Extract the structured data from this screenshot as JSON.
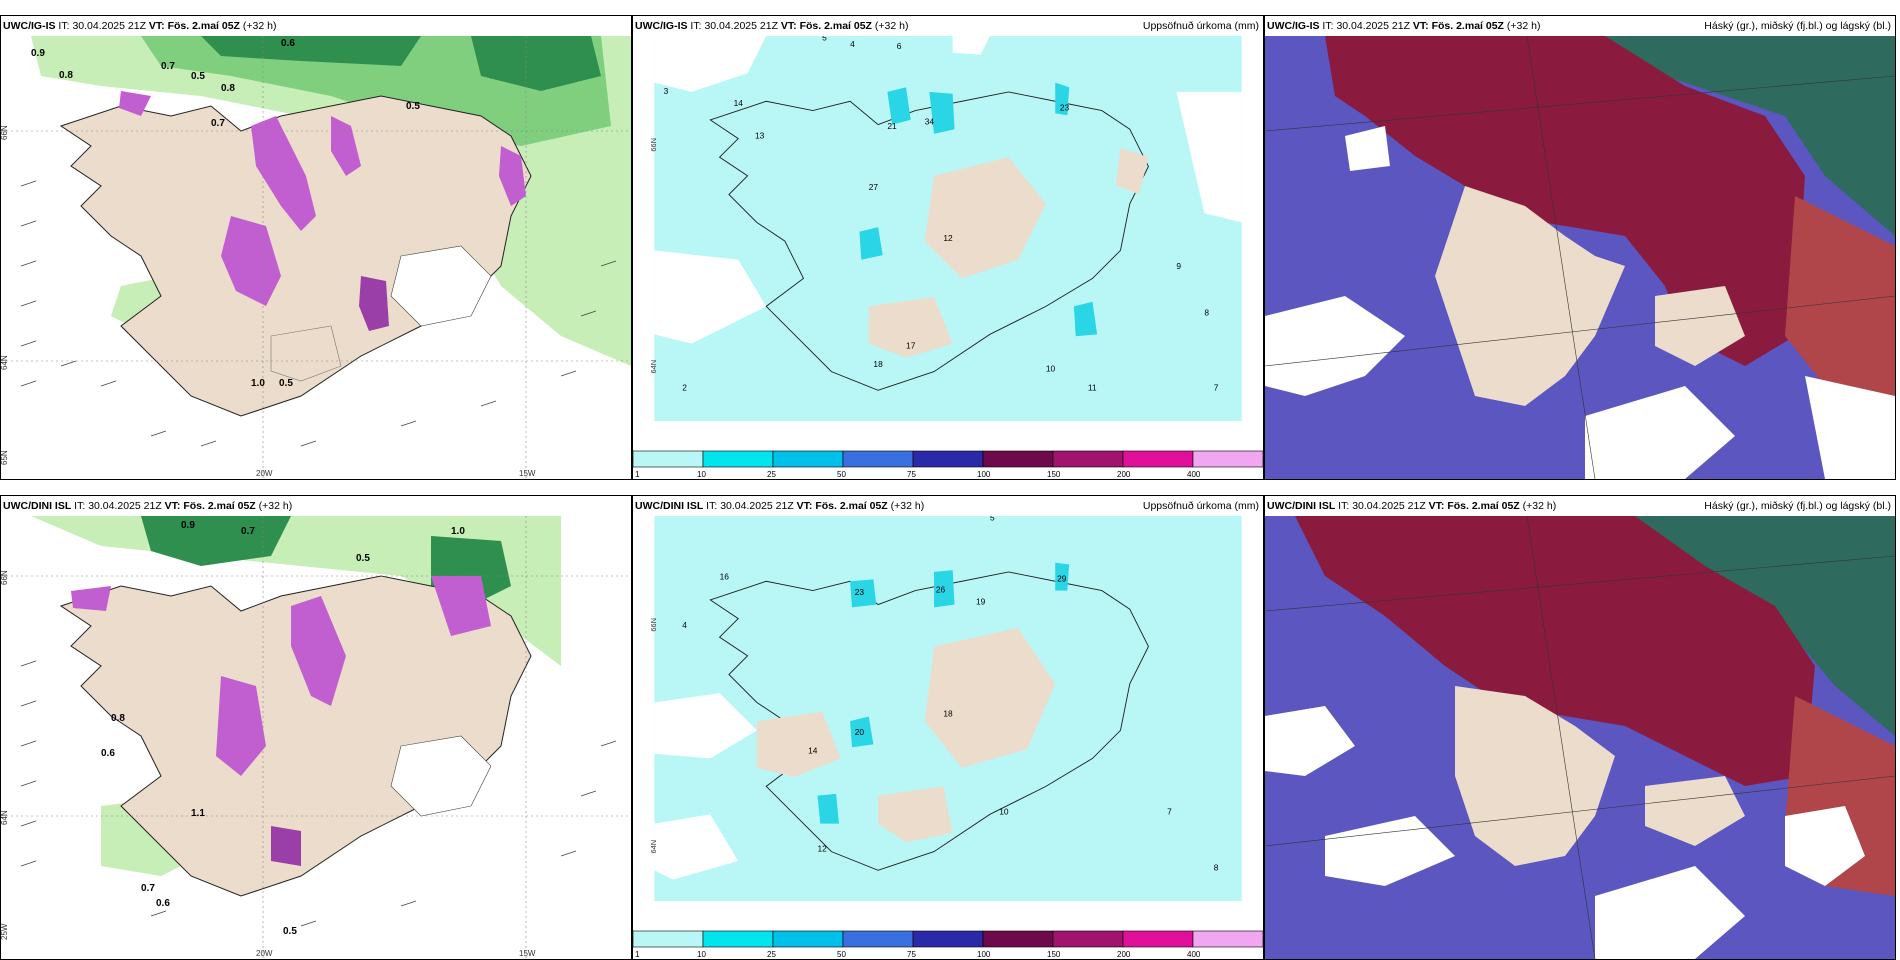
{
  "panels": [
    {
      "row": "top",
      "model": "UWC/IG-IS",
      "it_label": "IT:",
      "it_value": "30.04.2025 21Z",
      "vt_label": "VT:",
      "vt_value": "Fös. 2.maí 05Z",
      "lead": "(+32 h)",
      "right_title": "",
      "kind": "cloud-wind"
    },
    {
      "row": "top",
      "model": "UWC/IG-IS",
      "it_label": "IT:",
      "it_value": "30.04.2025 21Z",
      "vt_label": "VT:",
      "vt_value": "Fös. 2.maí 05Z",
      "lead": "(+32 h)",
      "right_title": "Uppsöfnuð úrkoma (mm)",
      "kind": "precip"
    },
    {
      "row": "top",
      "model": "UWC/IG-IS",
      "it_label": "IT:",
      "it_value": "30.04.2025 21Z",
      "vt_label": "VT:",
      "vt_value": "Fös. 2.maí 05Z",
      "lead": "(+32 h)",
      "right_title": "Háský (gr.), miðský (fj.bl.) og lágský (bl.)",
      "kind": "clouds"
    },
    {
      "row": "bottom",
      "model": "UWC/DINI ISL",
      "it_label": "IT:",
      "it_value": "30.04.2025 21Z",
      "vt_label": "VT:",
      "vt_value": "Fös. 2.maí 05Z",
      "lead": "(+32 h)",
      "right_title": "",
      "kind": "cloud-wind"
    },
    {
      "row": "bottom",
      "model": "UWC/DINI ISL",
      "it_label": "IT:",
      "it_value": "30.04.2025 21Z",
      "vt_label": "VT:",
      "vt_value": "Fös. 2.maí 05Z",
      "lead": "(+32 h)",
      "right_title": "Uppsöfnuð úrkoma (mm)",
      "kind": "precip"
    },
    {
      "row": "bottom",
      "model": "UWC/DINI ISL",
      "it_label": "IT:",
      "it_value": "30.04.2025 21Z",
      "vt_label": "VT:",
      "vt_value": "Fös. 2.maí 05Z",
      "lead": "(+32 h)",
      "right_title": "Háský (gr.), miðský (fj.bl.) og lágský (bl.)",
      "kind": "clouds"
    }
  ],
  "axis_labels": {
    "lat_66": "66N",
    "lat_64": "64N",
    "lat_65": "65N",
    "lon_20": "20W",
    "lon_15": "15W",
    "lon_25": "25W"
  },
  "precip_colorbar": {
    "ticks": [
      "1",
      "10",
      "25",
      "50",
      "75",
      "100",
      "150",
      "200",
      "400"
    ],
    "colors": [
      "#b9f7f7",
      "#00e5ee",
      "#00bfe8",
      "#3a6fe0",
      "#2a2aa8",
      "#6e0a4a",
      "#a0146e",
      "#e0109a",
      "#f0a6f0"
    ]
  },
  "sample_values_top_left": [
    "0.9",
    "0.8",
    "0.7",
    "0.5",
    "0.6",
    "0.8",
    "0.7",
    "0.5",
    "1.0",
    "0.5"
  ],
  "sample_values_top_mid": [
    "5",
    "4",
    "6",
    "3",
    "14",
    "21",
    "34",
    "23",
    "13",
    "27",
    "12",
    "17",
    "18",
    "11",
    "10",
    "9",
    "8",
    "7",
    "2"
  ],
  "sample_values_bottom_mid": [
    "5",
    "16",
    "23",
    "26",
    "19",
    "29",
    "20",
    "18",
    "14",
    "10",
    "12",
    "7",
    "8",
    "4"
  ],
  "sample_values_bottom_left": [
    "0.9",
    "0.7",
    "1.0",
    "0.6",
    "0.8",
    "0.5",
    "1.1",
    "0.7",
    "0.6",
    "0.5"
  ],
  "colors": {
    "land": "#ecdccb",
    "green_light": "#c6eeb6",
    "green_mid": "#7fcf7f",
    "green_dark": "#2f8f4f",
    "magenta": "#c15fd0",
    "cyan_light": "#b9f7f7",
    "cyan": "#2ad6e6",
    "purple": "#5b56c0",
    "maroon": "#8a1b3f",
    "teal": "#2e6a5e"
  }
}
